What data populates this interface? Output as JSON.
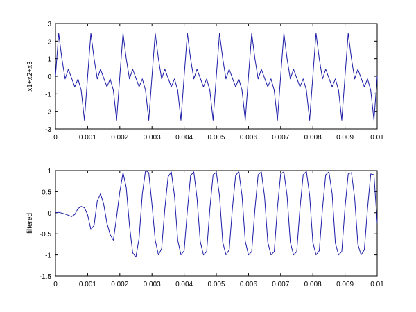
{
  "chart_data": [
    {
      "type": "line",
      "title": "",
      "xlabel": "",
      "ylabel": "x1+x2+x3",
      "xlim": [
        0,
        0.01
      ],
      "ylim": [
        -3,
        3
      ],
      "grid": false,
      "xticks": [
        "0",
        "0.001",
        "0.002",
        "0.003",
        "0.004",
        "0.005",
        "0.006",
        "0.007",
        "0.008",
        "0.009",
        "0.01"
      ],
      "yticks": [
        "3",
        "2",
        "1",
        "0",
        "-1",
        "-2",
        "-3"
      ],
      "line_color": "#1a1aa6",
      "series": [
        {
          "x": [
            0,
            0.0001,
            0.0002,
            0.0003,
            0.0004,
            0.0005,
            0.0006,
            0.0007,
            0.0008,
            0.0009,
            0.001
          ],
          "y": [
            0,
            2.45,
            1.0,
            -0.15,
            0.4,
            -0.1,
            -0.6,
            -0.15,
            -0.8,
            -2.5,
            0
          ]
        }
      ]
    },
    {
      "type": "line",
      "title": "",
      "xlabel": "",
      "ylabel": "filtered",
      "xlim": [
        0,
        0.01
      ],
      "ylim": [
        -1.5,
        1
      ],
      "grid": false,
      "xticks": [
        "0",
        "0.001",
        "0.002",
        "0.003",
        "0.004",
        "0.005",
        "0.006",
        "0.007",
        "0.008",
        "0.009",
        "0.01"
      ],
      "yticks": [
        "1",
        "0.5",
        "0",
        "-0.5",
        "-1",
        "-1.5"
      ],
      "line_color": "#1a1aa6",
      "series": [
        {
          "x": [
            0,
            0.0001,
            0.0002,
            0.0003,
            0.0004,
            0.0005,
            0.0006,
            0.0007,
            0.0008,
            0.0009,
            0.001,
            0.0011,
            0.0012,
            0.0013,
            0.0014,
            0.0015,
            0.0016,
            0.0017,
            0.0018,
            0.0019,
            0.002,
            0.0021,
            0.0022,
            0.0023,
            0.0024,
            0.0025,
            0.0026,
            0.0027,
            0.0028,
            0.0029,
            0.003,
            0.0031,
            0.0032,
            0.0033,
            0.0034,
            0.0035,
            0.0036,
            0.0037,
            0.0038,
            0.0039,
            0.004,
            0.0041,
            0.0042,
            0.0043,
            0.0044,
            0.0045,
            0.0046,
            0.0047,
            0.0048,
            0.0049,
            0.005,
            0.0051,
            0.0052,
            0.0053,
            0.0054,
            0.0055,
            0.0056,
            0.0057,
            0.0058,
            0.0059,
            0.006,
            0.0061,
            0.0062,
            0.0063,
            0.0064,
            0.0065,
            0.0066,
            0.0067,
            0.0068,
            0.0069,
            0.007,
            0.0071,
            0.0072,
            0.0073,
            0.0074,
            0.0075,
            0.0076,
            0.0077,
            0.0078,
            0.0079,
            0.008,
            0.0081,
            0.0082,
            0.0083,
            0.0084,
            0.0085,
            0.0086,
            0.0087,
            0.0088,
            0.0089,
            0.009,
            0.0091,
            0.0092,
            0.0093,
            0.0094,
            0.0095,
            0.0096,
            0.0097,
            0.0098,
            0.0099,
            0.01
          ],
          "y": [
            0,
            0.01,
            -0.01,
            -0.03,
            -0.06,
            -0.09,
            -0.04,
            0.1,
            0.15,
            0.12,
            -0.05,
            -0.4,
            -0.3,
            0.28,
            0.45,
            0.2,
            -0.25,
            -0.52,
            -0.65,
            -0.1,
            0.5,
            0.95,
            0.6,
            -0.3,
            -0.95,
            -1.05,
            -0.6,
            0.45,
            1.0,
            0.95,
            0.2,
            -0.65,
            -1.0,
            -0.85,
            0.1,
            0.85,
            0.97,
            0.4,
            -0.65,
            -1.0,
            -0.9,
            0.05,
            0.88,
            0.97,
            0.35,
            -0.68,
            -1.0,
            -0.92,
            0.1,
            0.9,
            0.96,
            0.4,
            -0.7,
            -1.0,
            -0.88,
            0.1,
            0.88,
            0.98,
            0.4,
            -0.68,
            -1.0,
            -0.92,
            0.08,
            0.9,
            0.97,
            0.38,
            -0.7,
            -1.0,
            -0.92,
            0.12,
            0.92,
            0.97,
            0.4,
            -0.7,
            -1.0,
            -0.92,
            0.1,
            0.9,
            0.98,
            0.42,
            -0.7,
            -1.0,
            -0.9,
            0.1,
            0.9,
            0.97,
            0.45,
            -0.72,
            -1.0,
            -0.92,
            0.12,
            0.92,
            0.95,
            0.35,
            -0.75,
            -1.0,
            -0.88,
            0.1,
            0.92,
            0.9,
            -0.25
          ]
        }
      ]
    }
  ]
}
